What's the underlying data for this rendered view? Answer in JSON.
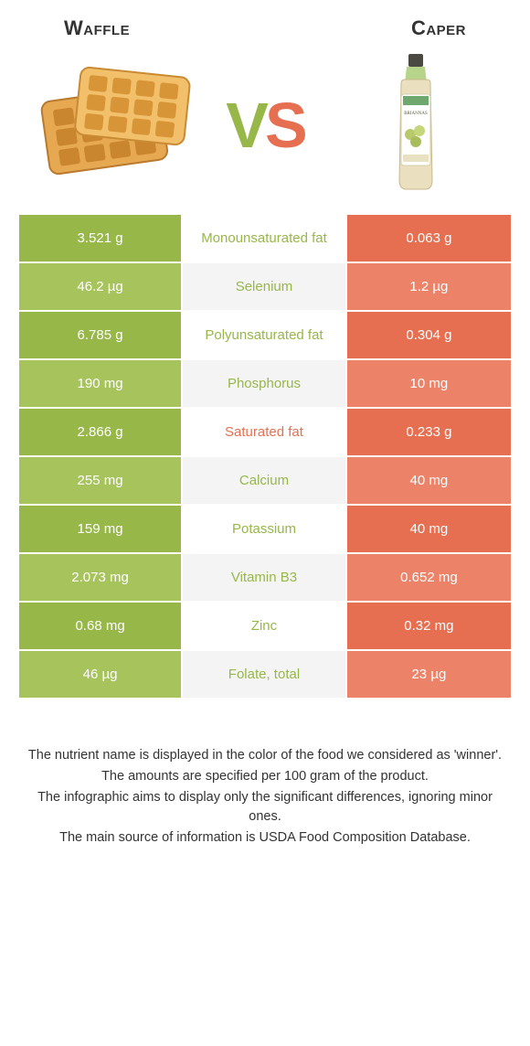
{
  "food_left": {
    "name": "Waffle",
    "color": "#97b749",
    "alt_color": "#a7c45c"
  },
  "food_right": {
    "name": "Caper",
    "color": "#e76f51",
    "alt_color": "#ec8268"
  },
  "vs": {
    "v": "V",
    "s": "S"
  },
  "mid_bg_even": "#f4f4f4",
  "mid_bg_odd": "#ffffff",
  "label_red_color": "#e76f51",
  "label_green_color": "#97b749",
  "rows": [
    {
      "left": "3.521 g",
      "label": "Monounsaturated fat",
      "right": "0.063 g",
      "winner": "left"
    },
    {
      "left": "46.2 µg",
      "label": "Selenium",
      "right": "1.2 µg",
      "winner": "left"
    },
    {
      "left": "6.785 g",
      "label": "Polyunsaturated fat",
      "right": "0.304 g",
      "winner": "left"
    },
    {
      "left": "190 mg",
      "label": "Phosphorus",
      "right": "10 mg",
      "winner": "left"
    },
    {
      "left": "2.866 g",
      "label": "Saturated fat",
      "right": "0.233 g",
      "winner": "right"
    },
    {
      "left": "255 mg",
      "label": "Calcium",
      "right": "40 mg",
      "winner": "left"
    },
    {
      "left": "159 mg",
      "label": "Potassium",
      "right": "40 mg",
      "winner": "left"
    },
    {
      "left": "2.073 mg",
      "label": "Vitamin B3",
      "right": "0.652 mg",
      "winner": "left"
    },
    {
      "left": "0.68 mg",
      "label": "Zinc",
      "right": "0.32 mg",
      "winner": "left"
    },
    {
      "left": "46 µg",
      "label": "Folate, total",
      "right": "23 µg",
      "winner": "left"
    }
  ],
  "notes": [
    "The nutrient name is displayed in the color of the food we considered as 'winner'.",
    "The amounts are specified per 100 gram of the product.",
    "The infographic aims to display only the significant differences, ignoring minor ones.",
    "The main source of information is USDA Food Composition Database."
  ]
}
